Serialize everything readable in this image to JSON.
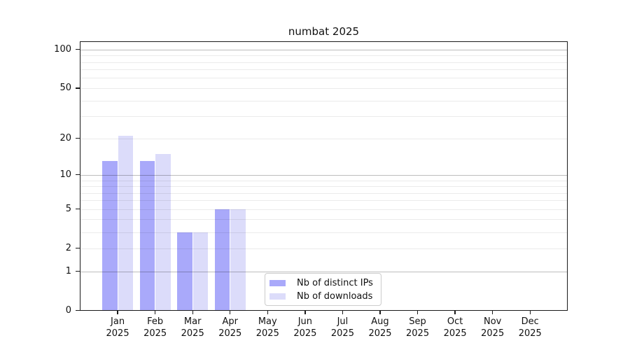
{
  "chart_data": {
    "type": "bar",
    "title": "numbat 2025",
    "categories": [
      "Jan",
      "Feb",
      "Mar",
      "Apr",
      "May",
      "Jun",
      "Jul",
      "Aug",
      "Sep",
      "Oct",
      "Nov",
      "Dec"
    ],
    "category_year": "2025",
    "series": [
      {
        "name": "Nb of distinct IPs",
        "color": "#a9a9fa",
        "values": [
          13,
          13,
          3,
          5,
          0,
          0,
          0,
          0,
          0,
          0,
          0,
          0
        ]
      },
      {
        "name": "Nb of downloads",
        "color": "#dcdcfa",
        "values": [
          21,
          15,
          3,
          5,
          0,
          0,
          0,
          0,
          0,
          0,
          0,
          0
        ]
      }
    ],
    "yscale": "log1p",
    "ylim": [
      0,
      100
    ],
    "yticks": [
      0,
      1,
      2,
      5,
      10,
      20,
      50,
      100
    ],
    "major_gridlines": [
      1,
      10,
      100
    ],
    "minor_gridlines": [
      2,
      3,
      4,
      5,
      6,
      7,
      8,
      9,
      20,
      30,
      40,
      50,
      60,
      70,
      80,
      90
    ],
    "legend_position": "lower-center",
    "xlabel": "",
    "ylabel": ""
  }
}
